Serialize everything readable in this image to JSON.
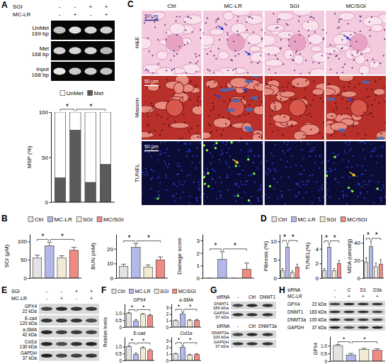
{
  "chart_data": [
    {
      "type": "bar",
      "stacked": true,
      "ylabel": "MSP (%)",
      "categories": [
        null,
        null,
        null,
        null
      ],
      "series": [
        {
          "name": "UnMet",
          "color": "#ffffff",
          "values": [
            73,
            20,
            78,
            58
          ]
        },
        {
          "name": "Met",
          "color": "#5a5a5a",
          "values": [
            27,
            80,
            22,
            42
          ]
        }
      ],
      "ylim": [
        0,
        100
      ],
      "yticks": [
        0,
        50,
        100
      ],
      "legend": "top",
      "tick_labels": "y",
      "annotations": [
        "*",
        "*"
      ]
    },
    {
      "type": "bar",
      "ylabel": "SCr (μM)",
      "categories": [
        "Ctrl",
        "MC-LR",
        "SGI",
        "MC/SGI"
      ],
      "colors": [
        "#e3e3e3",
        "#b3b8ea",
        "#f3ead6",
        "#f08b84"
      ],
      "values": [
        55,
        88,
        55,
        76
      ],
      "errors": [
        8,
        10,
        6,
        8
      ],
      "ylim": [
        0,
        120
      ],
      "yticks": [
        0,
        50,
        100
      ],
      "legend": "top",
      "tick_labels": "y",
      "annotations": [
        "*",
        "*"
      ]
    },
    {
      "type": "bar",
      "ylabel": "BUN (mM)",
      "categories": [
        null,
        null,
        null,
        null
      ],
      "colors": [
        "#e3e3e3",
        "#b3b8ea",
        "#f3ead6",
        "#f08b84"
      ],
      "values": [
        8,
        21,
        7.5,
        12.5
      ],
      "errors": [
        1.5,
        2.5,
        1.5,
        2
      ],
      "ylim": [
        0,
        30
      ],
      "yticks": [
        0,
        10,
        20
      ],
      "tick_labels": "y",
      "annotations": [
        "*",
        "*"
      ]
    },
    {
      "type": "bar",
      "ylabel": "Damage score",
      "categories": [
        null,
        null,
        null,
        null
      ],
      "colors": [
        "#e3e3e3",
        "#b3b8ea",
        "#f3ead6",
        "#f08b84"
      ],
      "values": [
        0,
        1.5,
        0,
        0.7
      ],
      "errors": [
        0,
        0.6,
        0,
        0.5
      ],
      "ylim": [
        0,
        3.5
      ],
      "yticks": [
        0,
        1,
        2,
        3
      ],
      "tick_labels": "y",
      "annotations": [
        "*",
        "*"
      ]
    },
    {
      "type": "bar",
      "ylabel": "Fibrosis (%)",
      "categories": [
        "Ctrl",
        "MC-LR",
        "SGI",
        "MC/SGI"
      ],
      "colors": [
        "#e3e3e3",
        "#b3b8ea",
        "#f3ead6",
        "#f08b84"
      ],
      "values": [
        2,
        8.5,
        1.5,
        3
      ],
      "errors": [
        0.6,
        1,
        0.5,
        0.8
      ],
      "ylim": [
        0,
        12
      ],
      "yticks": [
        0,
        5,
        10
      ],
      "legend": "top",
      "tick_labels": "y",
      "annotations": [
        "*",
        "*"
      ]
    },
    {
      "type": "bar",
      "ylabel": "TUNEL(%)",
      "categories": [
        null,
        null,
        null,
        null
      ],
      "colors": [
        "#e3e3e3",
        "#b3b8ea",
        "#f3ead6",
        "#f08b84"
      ],
      "values": [
        1,
        4.2,
        1,
        2
      ],
      "errors": [
        0.3,
        0.5,
        0.3,
        0.4
      ],
      "ylim": [
        0,
        6
      ],
      "yticks": [
        0,
        2,
        4
      ],
      "tick_labels": "y",
      "annotations": [
        "*",
        "*"
      ]
    },
    {
      "type": "bar",
      "ylabel": "MDA (umol/g)",
      "categories": [
        null,
        null,
        null,
        null
      ],
      "colors": [
        "#e3e3e3",
        "#b3b8ea",
        "#f3ead6",
        "#f08b84"
      ],
      "values": [
        18,
        36,
        13,
        16
      ],
      "errors": [
        5,
        6,
        4,
        5
      ],
      "ylim": [
        0,
        50
      ],
      "yticks": [
        0,
        20,
        40
      ],
      "tick_labels": "y",
      "annotations": [
        "*",
        "*"
      ]
    },
    {
      "type": "bar",
      "title": "GPX4",
      "ylabel": "Relative levels",
      "categories": [
        "Ctrl",
        "MC-LR",
        "SGI",
        "MC/SGI"
      ],
      "colors": [
        "#e3e3e3",
        "#b3b8ea",
        "#f3ead6",
        "#f08b84"
      ],
      "values": [
        1,
        0.45,
        0.93,
        0.85
      ],
      "errors": [
        0.06,
        0.1,
        0.06,
        0.08
      ],
      "ylim": [
        0,
        1.7
      ],
      "yticks": [
        0,
        0.5,
        {
          "value": 1,
          "label": "1.0"
        }
      ],
      "legend": "top",
      "tick_labels": "y",
      "annotations": [
        "*",
        "*"
      ]
    },
    {
      "type": "bar",
      "title": "α-SMA",
      "categories": [
        null,
        null,
        null,
        null
      ],
      "colors": [
        "#e3e3e3",
        "#b3b8ea",
        "#f3ead6",
        "#f08b84"
      ],
      "values": [
        1,
        2,
        1,
        1.05
      ],
      "errors": [
        0.1,
        0.3,
        0.15,
        0.15
      ],
      "ylim": [
        0,
        3.6
      ],
      "yticks": [
        0,
        1,
        2,
        3
      ],
      "tick_labels": "y",
      "annotations": [
        "*",
        "*"
      ]
    },
    {
      "type": "bar",
      "title": "E-cad",
      "categories": [
        null,
        null,
        null,
        null
      ],
      "colors": [
        "#e3e3e3",
        "#b3b8ea",
        "#f3ead6",
        "#f08b84"
      ],
      "values": [
        1,
        0.45,
        0.9,
        0.72
      ],
      "errors": [
        0.07,
        0.1,
        0.08,
        0.1
      ],
      "ylim": [
        0,
        1.7
      ],
      "yticks": [
        0,
        0.5,
        {
          "value": 1,
          "label": "1.0"
        }
      ],
      "tick_labels": "y",
      "annotations": [
        "*",
        "*"
      ]
    },
    {
      "type": "bar",
      "title": "Col1α",
      "categories": [
        null,
        null,
        null,
        null
      ],
      "colors": [
        "#e3e3e3",
        "#b3b8ea",
        "#f3ead6",
        "#f08b84"
      ],
      "values": [
        1,
        2,
        0.85,
        0.9
      ],
      "errors": [
        0.1,
        0.3,
        0.1,
        0.15
      ],
      "ylim": [
        0,
        3.6
      ],
      "yticks": [
        0,
        1,
        2,
        3
      ],
      "tick_labels": "y",
      "annotations": [
        "*",
        "*"
      ]
    },
    {
      "type": "bar",
      "ylabel": "GPX4",
      "categories": [
        null,
        null,
        null,
        null
      ],
      "colors": [
        "#e3e3e3",
        "#b3b8ea",
        "#f3ead6",
        "#f08b84"
      ],
      "values": [
        1,
        0.4,
        0.75,
        0.7
      ],
      "errors": [
        0.07,
        0.1,
        0.08,
        0.1
      ],
      "ylim": [
        0,
        1.6
      ],
      "yticks": [
        0,
        0.5,
        {
          "value": 1,
          "label": "1.0"
        }
      ],
      "tick_labels": "y",
      "annotations": [
        "*",
        "*"
      ]
    }
  ],
  "panels": {
    "A": {
      "letter": "A",
      "conditions": [
        {
          "label": "SGI",
          "signs": [
            "-",
            "-",
            "+",
            "+"
          ]
        },
        {
          "label": "MC-LR",
          "signs": [
            "-",
            "+",
            "-",
            "+"
          ]
        }
      ],
      "gel": [
        {
          "name": "UnMet",
          "size": "169 bp"
        },
        {
          "name": "Met",
          "size": "168 bp"
        },
        {
          "name": "Input",
          "size": "168 bp"
        }
      ]
    },
    "B": {
      "letter": "B"
    },
    "C": {
      "letter": "C",
      "columns": [
        "Ctrl",
        "MC-LR",
        "SGI",
        "MC/SGI"
      ],
      "rows": [
        "H&E",
        "Masson",
        "TUNEL"
      ],
      "scale_bar": "50 μm"
    },
    "D": {
      "letter": "D"
    },
    "E": {
      "letter": "E",
      "conditions": [
        {
          "label": "SGI",
          "signs": [
            "-",
            "-",
            "+",
            "+"
          ]
        },
        {
          "label": "MC-LR",
          "signs": [
            "-",
            "+",
            "-",
            "+"
          ]
        }
      ],
      "bands": [
        {
          "name": "GPX4",
          "size": "22 kDa"
        },
        {
          "name": "E-cad",
          "size": "120 kDa"
        },
        {
          "name": "α-SMA",
          "size": "42 kDa"
        },
        {
          "name": "Col1α",
          "size": "130 kDa"
        },
        {
          "name": "GAPDH",
          "size": "37 kDa"
        }
      ]
    },
    "F": {
      "letter": "F"
    },
    "G": {
      "letter": "G",
      "blots": [
        {
          "conditions": [
            {
              "label": "siRNA",
              "signs": [
                "-",
                "Ctrl",
                "DNMT1"
              ]
            }
          ],
          "bands": [
            {
              "name": "DNMT1",
              "size": "183 kDa"
            },
            {
              "name": "GAPDH",
              "size": "37 kDa"
            }
          ]
        },
        {
          "conditions": [
            {
              "label": "siRNA",
              "signs": [
                "-",
                "Ctrl",
                "DNMT3a"
              ]
            }
          ],
          "bands": [
            {
              "name": "DNMT3a",
              "size": "100 kDa"
            },
            {
              "name": "GAPDH",
              "size": "37 kDa"
            }
          ]
        }
      ]
    },
    "H": {
      "letter": "H",
      "conditions": [
        {
          "label": "siRNA",
          "signs": [
            "-",
            "C",
            "D1",
            "D3a"
          ]
        },
        {
          "label": "MC-LR",
          "signs": [
            "-",
            "+",
            "+",
            "+"
          ]
        }
      ],
      "bands": [
        {
          "name": "GPX4",
          "size": "22 kDa"
        },
        {
          "name": "DNMT1",
          "size": "183 kDa"
        },
        {
          "name": "DNMT3a",
          "size": "100 kDa"
        },
        {
          "name": "GAPDH",
          "size": "37 kDa"
        }
      ]
    }
  }
}
